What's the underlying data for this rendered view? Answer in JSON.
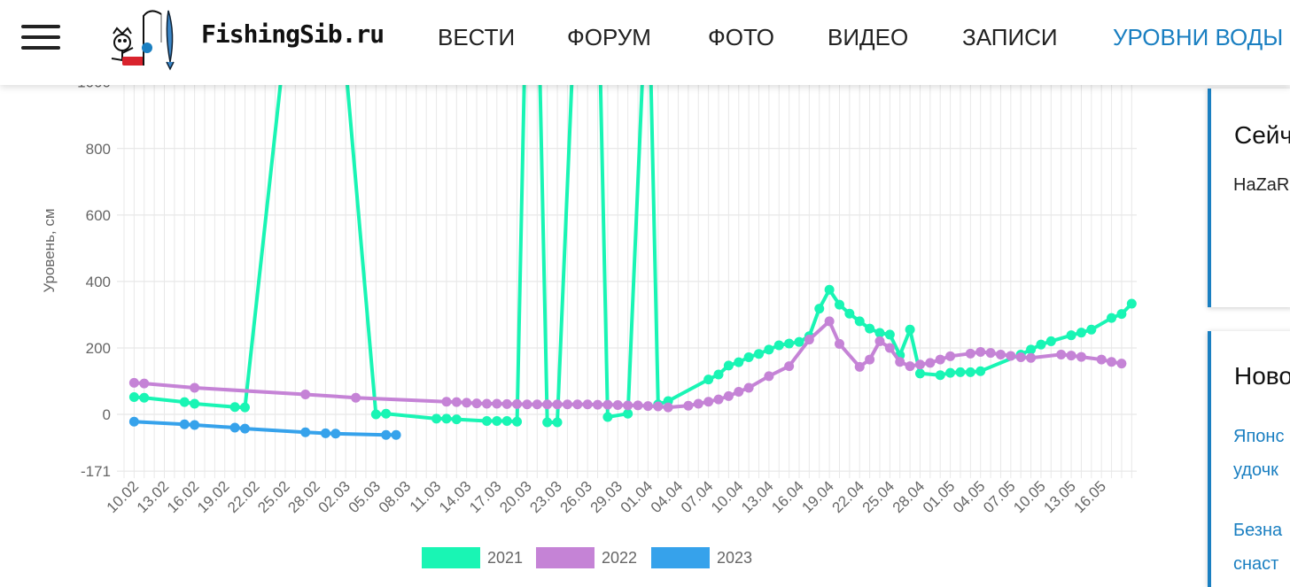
{
  "header": {
    "logo_text": "FishingSib.ru",
    "nav": [
      "ВЕСТИ",
      "ФОРУМ",
      "ФОТО",
      "ВИДЕО",
      "ЗАПИСИ",
      "УРОВНИ ВОДЫ"
    ],
    "active_nav": "УРОВНИ ВОДЫ",
    "accent_color": "#1a7fc1"
  },
  "sidebar": {
    "card1": {
      "title": "Сейч",
      "text": "HaZaR"
    },
    "card2": {
      "title": "Ново",
      "links": [
        "Японс",
        "удочк",
        "Безна",
        "снаст"
      ]
    }
  },
  "chart_data": {
    "type": "line",
    "xlabel": "",
    "ylabel": "Уровень, см",
    "ylim": [
      -171,
      1000
    ],
    "yticks": [
      -171,
      0,
      200,
      400,
      600,
      800
    ],
    "x_tick_labels": [
      "10.02",
      "13.02",
      "16.02",
      "19.02",
      "22.02",
      "25.02",
      "28.02",
      "02.03",
      "05.03",
      "08.03",
      "11.03",
      "14.03",
      "17.03",
      "20.03",
      "23.03",
      "26.03",
      "29.03",
      "01.04",
      "04.04",
      "07.04",
      "10.04",
      "13.04",
      "16.04",
      "19.04",
      "22.04",
      "25.04",
      "28.04",
      "01.05",
      "04.05",
      "07.05",
      "10.05",
      "13.05",
      "16.05"
    ],
    "x_tick_days": [
      0,
      3,
      6,
      9,
      12,
      15,
      18,
      21,
      24,
      27,
      30,
      33,
      36,
      39,
      42,
      45,
      48,
      51,
      54,
      57,
      60,
      63,
      66,
      69,
      72,
      75,
      78,
      81,
      84,
      87,
      90,
      93,
      96
    ],
    "x_range_days": [
      -1,
      99.5
    ],
    "x_start_date": "10.02",
    "grid": true,
    "legend_position": "bottom",
    "series": [
      {
        "name": "2021",
        "color": "#19f5b4",
        "marker": true,
        "points": [
          [
            0,
            52
          ],
          [
            1,
            50
          ],
          [
            5,
            37
          ],
          [
            6,
            32
          ],
          [
            10,
            22
          ],
          [
            11,
            21
          ],
          [
            16,
            1400
          ],
          [
            20,
            1400
          ],
          [
            24,
            0
          ],
          [
            25,
            2
          ],
          [
            30,
            -13
          ],
          [
            31,
            -13
          ],
          [
            32,
            -15
          ],
          [
            35,
            -20
          ],
          [
            36,
            -20
          ],
          [
            37,
            -20
          ],
          [
            38,
            -22
          ],
          [
            39,
            1400
          ],
          [
            40,
            1400
          ],
          [
            41,
            -24
          ],
          [
            42,
            -24
          ],
          [
            44,
            1400
          ],
          [
            46,
            1400
          ],
          [
            47,
            -8
          ],
          [
            49,
            2
          ],
          [
            51,
            1400
          ],
          [
            52,
            30
          ],
          [
            53,
            40
          ],
          [
            57,
            105
          ],
          [
            58,
            120
          ],
          [
            59,
            147
          ],
          [
            60,
            157
          ],
          [
            61,
            172
          ],
          [
            62,
            182
          ],
          [
            63,
            195
          ],
          [
            64,
            208
          ],
          [
            65,
            213
          ],
          [
            66,
            218
          ],
          [
            67,
            235
          ],
          [
            68,
            318
          ],
          [
            69,
            375
          ],
          [
            70,
            330
          ],
          [
            71,
            303
          ],
          [
            72,
            280
          ],
          [
            73,
            258
          ],
          [
            74,
            245
          ],
          [
            75,
            240
          ],
          [
            76,
            178
          ],
          [
            77,
            255
          ],
          [
            78,
            123
          ],
          [
            80,
            118
          ],
          [
            81,
            125
          ],
          [
            82,
            127
          ],
          [
            83,
            127
          ],
          [
            84,
            130
          ],
          [
            88,
            180
          ],
          [
            89,
            195
          ],
          [
            90,
            210
          ],
          [
            91,
            220
          ],
          [
            93,
            238
          ],
          [
            94,
            246
          ],
          [
            95,
            255
          ],
          [
            97,
            290
          ],
          [
            98,
            302
          ],
          [
            99,
            333
          ]
        ]
      },
      {
        "name": "2022",
        "color": "#c583d6",
        "marker": true,
        "points": [
          [
            0,
            95
          ],
          [
            1,
            93
          ],
          [
            6,
            80
          ],
          [
            17,
            60
          ],
          [
            22,
            50
          ],
          [
            31,
            38
          ],
          [
            32,
            37
          ],
          [
            33,
            35
          ],
          [
            34,
            33
          ],
          [
            35,
            32
          ],
          [
            36,
            32
          ],
          [
            37,
            31
          ],
          [
            38,
            31
          ],
          [
            39,
            30
          ],
          [
            40,
            30
          ],
          [
            41,
            30
          ],
          [
            42,
            30
          ],
          [
            43,
            30
          ],
          [
            44,
            30
          ],
          [
            45,
            30
          ],
          [
            46,
            29
          ],
          [
            47,
            29
          ],
          [
            48,
            28
          ],
          [
            49,
            27
          ],
          [
            50,
            27
          ],
          [
            51,
            25
          ],
          [
            52,
            24
          ],
          [
            53,
            21
          ],
          [
            55,
            26
          ],
          [
            56,
            32
          ],
          [
            57,
            38
          ],
          [
            58,
            45
          ],
          [
            59,
            55
          ],
          [
            60,
            68
          ],
          [
            61,
            80
          ],
          [
            63,
            115
          ],
          [
            65,
            145
          ],
          [
            67,
            225
          ],
          [
            69,
            280
          ],
          [
            70,
            212
          ],
          [
            72,
            143
          ],
          [
            73,
            165
          ],
          [
            74,
            220
          ],
          [
            75,
            200
          ],
          [
            76,
            158
          ],
          [
            77,
            145
          ],
          [
            78,
            150
          ],
          [
            79,
            155
          ],
          [
            80,
            165
          ],
          [
            81,
            175
          ],
          [
            83,
            183
          ],
          [
            84,
            188
          ],
          [
            85,
            185
          ],
          [
            86,
            180
          ],
          [
            87,
            176
          ],
          [
            88,
            172
          ],
          [
            89,
            170
          ],
          [
            92,
            180
          ],
          [
            93,
            177
          ],
          [
            94,
            173
          ],
          [
            96,
            165
          ],
          [
            97,
            158
          ],
          [
            98,
            153
          ]
        ]
      },
      {
        "name": "2023",
        "color": "#36a2eb",
        "marker": true,
        "points": [
          [
            0,
            -22
          ],
          [
            5,
            -30
          ],
          [
            6,
            -32
          ],
          [
            10,
            -40
          ],
          [
            11,
            -43
          ],
          [
            17,
            -54
          ],
          [
            19,
            -57
          ],
          [
            20,
            -58
          ],
          [
            25,
            -62
          ],
          [
            26,
            -62
          ]
        ]
      }
    ]
  }
}
